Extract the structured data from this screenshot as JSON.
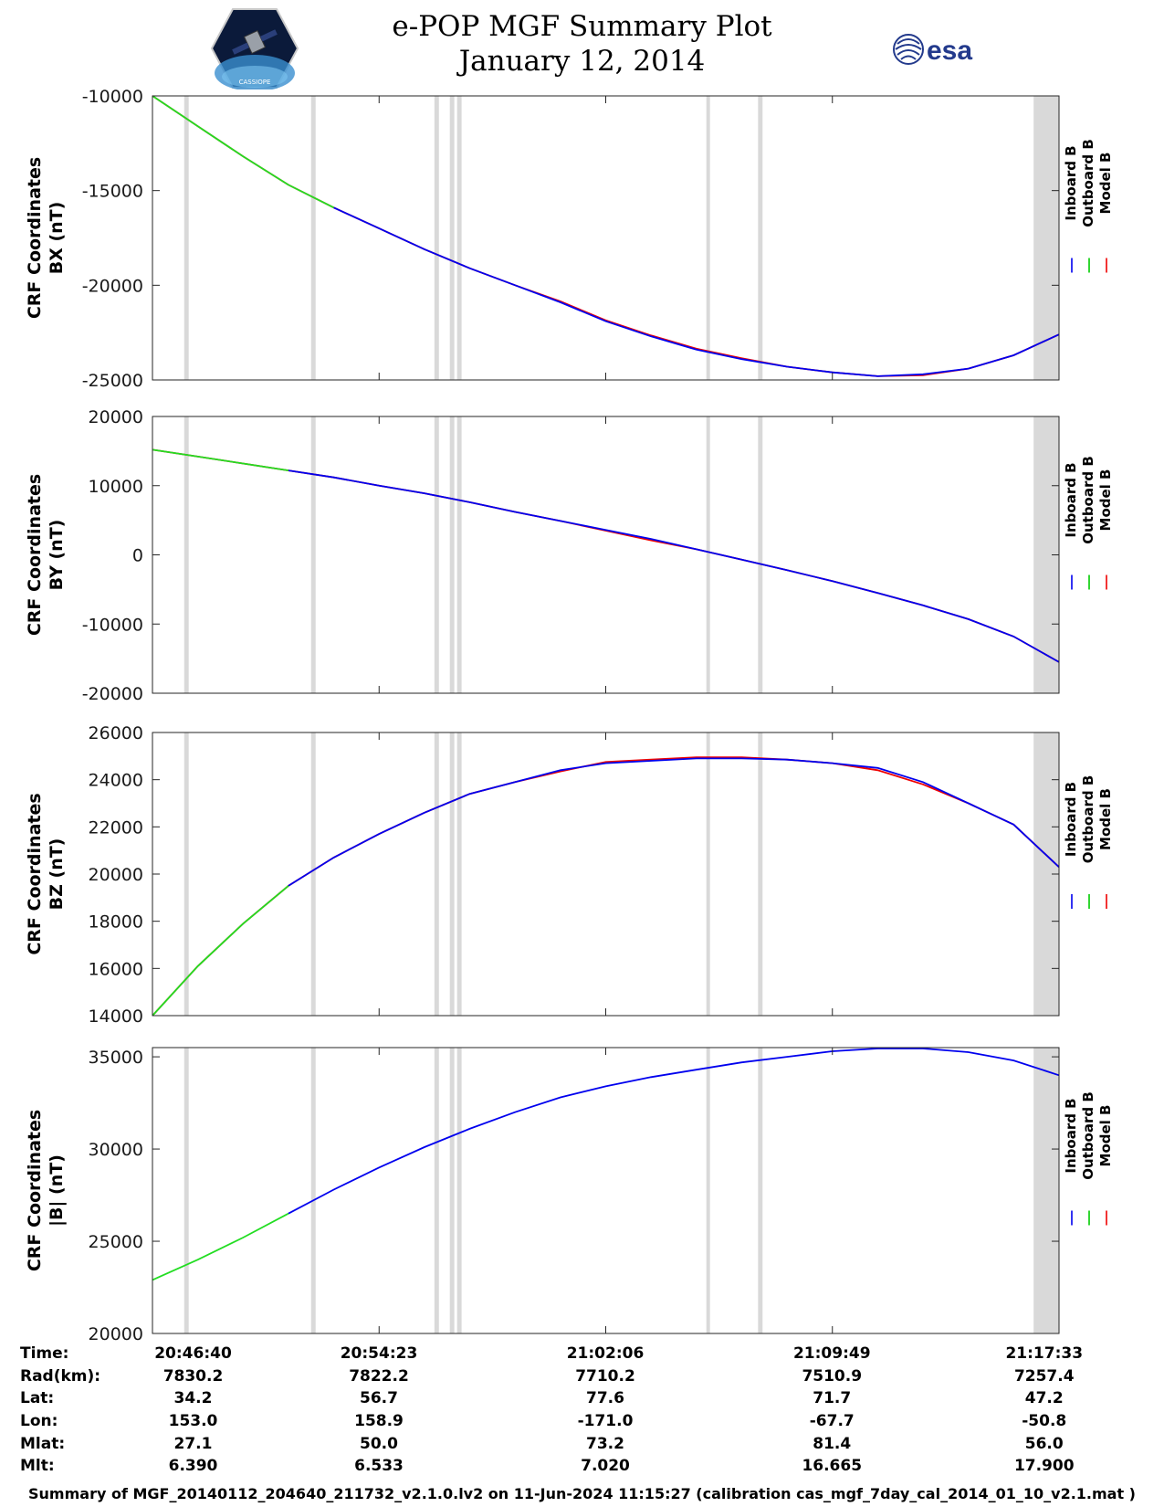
{
  "header": {
    "title": "e-POP MGF Summary Plot",
    "date": "January 12, 2014",
    "logo_left_text": "CASSIOPE",
    "logo_right_text": "esa"
  },
  "legend": {
    "labels": [
      "Inboard B",
      "Outboard B",
      "Model B"
    ],
    "colors": [
      "#0000ee",
      "#00cc00",
      "#ee0000"
    ]
  },
  "colors": {
    "inboard": "#0000ee",
    "outboard": "#22dd22",
    "model": "#ee0000",
    "gap": "#d9d9d9"
  },
  "chart_data": [
    {
      "type": "line",
      "ylabel_line1": "CRF Coordinates",
      "ylabel_line2": "BX (nT)",
      "ylim": [
        -25000,
        -10000
      ],
      "yticks": [
        -25000,
        -20000,
        -15000,
        -10000
      ],
      "x": [
        0,
        0.05,
        0.1,
        0.15,
        0.2,
        0.25,
        0.3,
        0.35,
        0.4,
        0.45,
        0.5,
        0.55,
        0.6,
        0.65,
        0.7,
        0.75,
        0.8,
        0.85,
        0.9,
        0.95,
        1.0
      ],
      "series": [
        {
          "name": "Inboard B",
          "values": [
            -10000,
            -11600,
            -13200,
            -14700,
            -15900,
            -17000,
            -18100,
            -19100,
            -20000,
            -20900,
            -21900,
            -22700,
            -23400,
            -23900,
            -24300,
            -24600,
            -24800,
            -24700,
            -24400,
            -23700,
            -22600
          ]
        },
        {
          "name": "Model B",
          "values": [
            -10000,
            -11600,
            -13200,
            -14700,
            -15900,
            -17000,
            -18100,
            -19100,
            -20000,
            -20850,
            -21850,
            -22650,
            -23350,
            -23850,
            -24300,
            -24600,
            -24800,
            -24750,
            -24400,
            -23700,
            -22600
          ]
        }
      ],
      "outboard_until": 0.2
    },
    {
      "type": "line",
      "ylabel_line1": "CRF Coordinates",
      "ylabel_line2": "BY (nT)",
      "ylim": [
        -20000,
        20000
      ],
      "yticks": [
        -20000,
        -10000,
        0,
        10000,
        20000
      ],
      "x": [
        0,
        0.05,
        0.1,
        0.15,
        0.2,
        0.25,
        0.3,
        0.35,
        0.4,
        0.45,
        0.5,
        0.55,
        0.6,
        0.65,
        0.7,
        0.75,
        0.8,
        0.85,
        0.9,
        0.95,
        1.0
      ],
      "series": [
        {
          "name": "Inboard B",
          "values": [
            15200,
            14200,
            13200,
            12200,
            11200,
            10000,
            8900,
            7600,
            6200,
            4900,
            3600,
            2300,
            800,
            -700,
            -2200,
            -3800,
            -5500,
            -7300,
            -9300,
            -11800,
            -15500
          ]
        },
        {
          "name": "Model B",
          "values": [
            15200,
            14200,
            13200,
            12200,
            11200,
            10000,
            8900,
            7600,
            6200,
            4900,
            3500,
            2100,
            800,
            -700,
            -2200,
            -3800,
            -5500,
            -7300,
            -9300,
            -11800,
            -15500
          ]
        }
      ],
      "outboard_until": 0.19
    },
    {
      "type": "line",
      "ylabel_line1": "CRF Coordinates",
      "ylabel_line2": "BZ (nT)",
      "ylim": [
        14000,
        26000
      ],
      "yticks": [
        14000,
        16000,
        18000,
        20000,
        22000,
        24000,
        26000
      ],
      "x": [
        0,
        0.05,
        0.1,
        0.15,
        0.2,
        0.25,
        0.3,
        0.35,
        0.4,
        0.45,
        0.5,
        0.55,
        0.6,
        0.65,
        0.7,
        0.75,
        0.8,
        0.85,
        0.9,
        0.95,
        1.0
      ],
      "series": [
        {
          "name": "Inboard B",
          "values": [
            14000,
            16100,
            17900,
            19500,
            20700,
            21700,
            22600,
            23400,
            23900,
            24400,
            24700,
            24800,
            24900,
            24900,
            24850,
            24700,
            24500,
            23900,
            23000,
            22100,
            20300
          ]
        },
        {
          "name": "Model B",
          "values": [
            14000,
            16100,
            17900,
            19500,
            20700,
            21700,
            22600,
            23400,
            23900,
            24350,
            24750,
            24850,
            24950,
            24950,
            24850,
            24700,
            24400,
            23800,
            23000,
            22100,
            20300
          ]
        }
      ],
      "outboard_until": 0.19
    },
    {
      "type": "line",
      "ylabel_line1": "CRF Coordinates",
      "ylabel_line2": "|B| (nT)",
      "ylim": [
        20000,
        35500
      ],
      "yticks": [
        20000,
        25000,
        30000,
        35000
      ],
      "x": [
        0,
        0.05,
        0.1,
        0.15,
        0.2,
        0.25,
        0.3,
        0.35,
        0.4,
        0.45,
        0.5,
        0.55,
        0.6,
        0.65,
        0.7,
        0.75,
        0.8,
        0.85,
        0.9,
        0.95,
        1.0
      ],
      "series": [
        {
          "name": "Inboard B",
          "values": [
            22900,
            24000,
            25200,
            26500,
            27800,
            29000,
            30100,
            31100,
            32000,
            32800,
            33400,
            33900,
            34300,
            34700,
            35000,
            35300,
            35450,
            35450,
            35250,
            34800,
            34000
          ]
        }
      ],
      "outboard_until": 0.19
    }
  ],
  "gap_bands": [
    [
      0.035,
      0.04
    ],
    [
      0.175,
      0.18
    ],
    [
      0.311,
      0.316
    ],
    [
      0.328,
      0.333
    ],
    [
      0.336,
      0.341
    ],
    [
      0.611,
      0.615
    ],
    [
      0.668,
      0.673
    ],
    [
      0.972,
      1.0
    ]
  ],
  "x_axis": {
    "tick_fracs": [
      0,
      0.25,
      0.5,
      0.75,
      1.0
    ],
    "rows": [
      {
        "label": "Time:",
        "values": [
          "20:46:40",
          "20:54:23",
          "21:02:06",
          "21:09:49",
          "21:17:33"
        ]
      },
      {
        "label": "Rad(km):",
        "values": [
          "7830.2",
          "7822.2",
          "7710.2",
          "7510.9",
          "7257.4"
        ]
      },
      {
        "label": "Lat:",
        "values": [
          "34.2",
          "56.7",
          "77.6",
          "71.7",
          "47.2"
        ]
      },
      {
        "label": "Lon:",
        "values": [
          "153.0",
          "158.9",
          "-171.0",
          "-67.7",
          "-50.8"
        ]
      },
      {
        "label": "Mlat:",
        "values": [
          "27.1",
          "50.0",
          "73.2",
          "81.4",
          "56.0"
        ]
      },
      {
        "label": "Mlt:",
        "values": [
          "6.390",
          "6.533",
          "7.020",
          "16.665",
          "17.900"
        ]
      }
    ]
  },
  "footer": "Summary of MGF_20140112_204640_211732_v2.1.0.lv2 on 11-Jun-2024 11:15:27 (calibration cas_mgf_7day_cal_2014_01_10_v2.1.mat )"
}
